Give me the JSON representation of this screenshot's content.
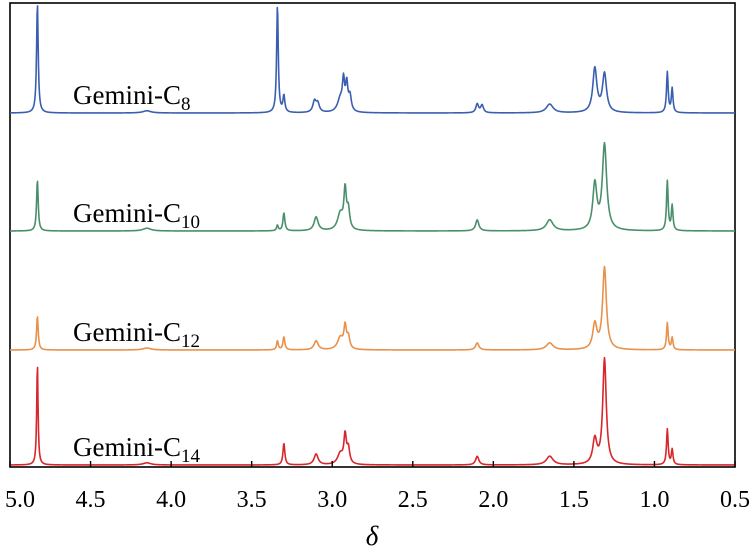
{
  "chart_data": {
    "type": "line",
    "title": "",
    "xlabel": "δ",
    "ylabel": "",
    "xlim": [
      5.0,
      0.5
    ],
    "x_reversed": true,
    "x_ticks": [
      "5.0",
      "4.5",
      "4.0",
      "3.5",
      "3.0",
      "2.5",
      "2.0",
      "1.5",
      "1.0",
      "0.5"
    ],
    "grid": false,
    "legend": "inline labels left of each stacked spectrum",
    "series": [
      {
        "name": "Gemini-C8",
        "label_main": "Gemini-C",
        "label_sub": "8",
        "color": "#3a5fb0",
        "peaks": [
          {
            "x": 4.83,
            "y": 1.0,
            "w": 0.006
          },
          {
            "x": 4.15,
            "y": 0.02,
            "w": 0.03
          },
          {
            "x": 3.34,
            "y": 0.98,
            "w": 0.006
          },
          {
            "x": 3.3,
            "y": 0.15,
            "w": 0.007
          },
          {
            "x": 3.11,
            "y": 0.1,
            "w": 0.012
          },
          {
            "x": 3.09,
            "y": 0.08,
            "w": 0.012
          },
          {
            "x": 2.95,
            "y": 0.12,
            "w": 0.02
          },
          {
            "x": 2.93,
            "y": 0.26,
            "w": 0.008
          },
          {
            "x": 2.91,
            "y": 0.24,
            "w": 0.008
          },
          {
            "x": 2.89,
            "y": 0.14,
            "w": 0.01
          },
          {
            "x": 2.1,
            "y": 0.08,
            "w": 0.01
          },
          {
            "x": 2.07,
            "y": 0.07,
            "w": 0.01
          },
          {
            "x": 1.65,
            "y": 0.08,
            "w": 0.025
          },
          {
            "x": 1.37,
            "y": 0.4,
            "w": 0.015
          },
          {
            "x": 1.31,
            "y": 0.35,
            "w": 0.015
          },
          {
            "x": 0.92,
            "y": 0.37,
            "w": 0.006
          },
          {
            "x": 0.89,
            "y": 0.22,
            "w": 0.006
          }
        ]
      },
      {
        "name": "Gemini-C10",
        "label_main": "Gemini-C",
        "label_sub": "10",
        "color": "#4a8f6b",
        "peaks": [
          {
            "x": 4.83,
            "y": 0.37,
            "w": 0.006
          },
          {
            "x": 4.15,
            "y": 0.02,
            "w": 0.03
          },
          {
            "x": 3.34,
            "y": 0.04,
            "w": 0.006
          },
          {
            "x": 3.3,
            "y": 0.13,
            "w": 0.007
          },
          {
            "x": 3.1,
            "y": 0.1,
            "w": 0.015
          },
          {
            "x": 2.95,
            "y": 0.12,
            "w": 0.02
          },
          {
            "x": 2.92,
            "y": 0.28,
            "w": 0.009
          },
          {
            "x": 2.9,
            "y": 0.14,
            "w": 0.01
          },
          {
            "x": 2.1,
            "y": 0.08,
            "w": 0.012
          },
          {
            "x": 1.65,
            "y": 0.08,
            "w": 0.025
          },
          {
            "x": 1.37,
            "y": 0.33,
            "w": 0.015
          },
          {
            "x": 1.31,
            "y": 0.62,
            "w": 0.016
          },
          {
            "x": 0.92,
            "y": 0.36,
            "w": 0.006
          },
          {
            "x": 0.89,
            "y": 0.18,
            "w": 0.006
          }
        ]
      },
      {
        "name": "Gemini-C12",
        "label_main": "Gemini-C",
        "label_sub": "12",
        "color": "#e9914a",
        "peaks": [
          {
            "x": 4.83,
            "y": 0.34,
            "w": 0.006
          },
          {
            "x": 4.15,
            "y": 0.02,
            "w": 0.03
          },
          {
            "x": 3.34,
            "y": 0.09,
            "w": 0.006
          },
          {
            "x": 3.3,
            "y": 0.13,
            "w": 0.007
          },
          {
            "x": 3.1,
            "y": 0.09,
            "w": 0.015
          },
          {
            "x": 2.95,
            "y": 0.12,
            "w": 0.02
          },
          {
            "x": 2.92,
            "y": 0.22,
            "w": 0.009
          },
          {
            "x": 2.9,
            "y": 0.12,
            "w": 0.01
          },
          {
            "x": 2.1,
            "y": 0.07,
            "w": 0.012
          },
          {
            "x": 1.65,
            "y": 0.07,
            "w": 0.025
          },
          {
            "x": 1.37,
            "y": 0.25,
            "w": 0.015
          },
          {
            "x": 1.31,
            "y": 0.82,
            "w": 0.014
          },
          {
            "x": 0.92,
            "y": 0.27,
            "w": 0.006
          },
          {
            "x": 0.89,
            "y": 0.12,
            "w": 0.006
          }
        ]
      },
      {
        "name": "Gemini-C14",
        "label_main": "Gemini-C",
        "label_sub": "14",
        "color": "#d8262a",
        "peaks": [
          {
            "x": 4.83,
            "y": 0.94,
            "w": 0.005
          },
          {
            "x": 4.15,
            "y": 0.02,
            "w": 0.03
          },
          {
            "x": 3.3,
            "y": 0.2,
            "w": 0.007
          },
          {
            "x": 3.1,
            "y": 0.1,
            "w": 0.015
          },
          {
            "x": 2.95,
            "y": 0.1,
            "w": 0.02
          },
          {
            "x": 2.92,
            "y": 0.26,
            "w": 0.009
          },
          {
            "x": 2.9,
            "y": 0.14,
            "w": 0.01
          },
          {
            "x": 2.1,
            "y": 0.08,
            "w": 0.012
          },
          {
            "x": 1.65,
            "y": 0.08,
            "w": 0.025
          },
          {
            "x": 1.37,
            "y": 0.23,
            "w": 0.015
          },
          {
            "x": 1.31,
            "y": 0.98,
            "w": 0.013
          },
          {
            "x": 0.92,
            "y": 0.33,
            "w": 0.006
          },
          {
            "x": 0.89,
            "y": 0.14,
            "w": 0.006
          }
        ]
      }
    ]
  }
}
